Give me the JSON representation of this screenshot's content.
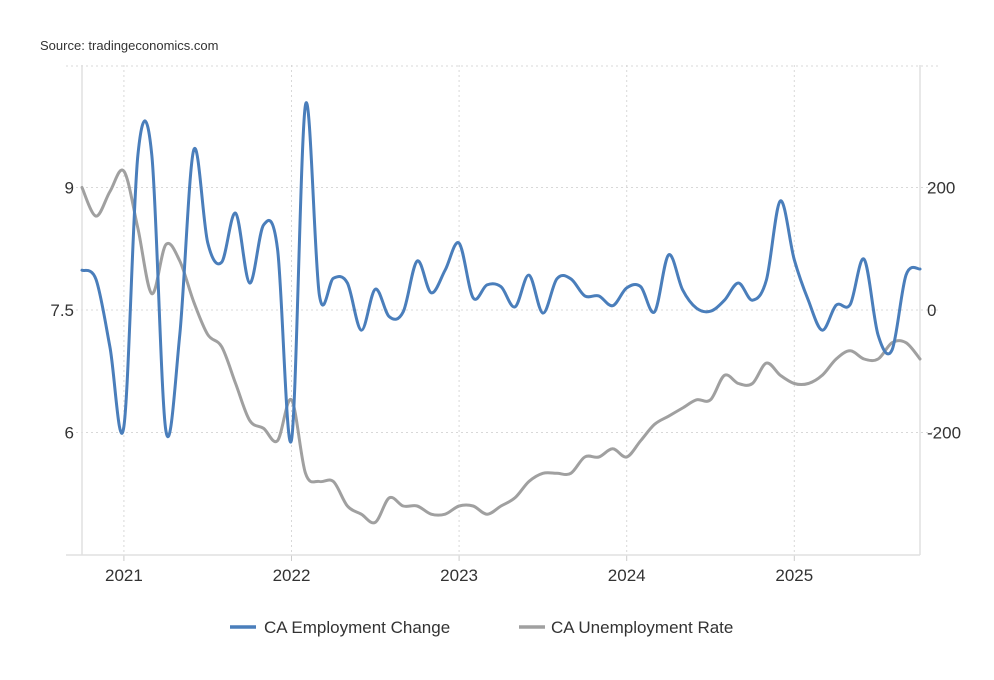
{
  "source": "Source: tradingeconomics.com",
  "chart_data": {
    "type": "line",
    "title": "",
    "x_start": "2020-10",
    "x_end": "2025-10",
    "x_frequency": "monthly",
    "x_ticks": [
      "2021",
      "2022",
      "2023",
      "2024",
      "2025"
    ],
    "left_axis": {
      "label": "",
      "ylim": [
        4.5,
        10.5
      ],
      "ticks": [
        6,
        7.5,
        9
      ],
      "tick_labels": [
        "6",
        "7.5",
        "9"
      ]
    },
    "right_axis": {
      "label": "",
      "ylim": [
        -400,
        400
      ],
      "ticks": [
        -200,
        0,
        200
      ],
      "tick_labels": [
        "-200",
        "0",
        "200"
      ]
    },
    "grid": true,
    "legend_position": "bottom",
    "series": [
      {
        "name": "CA Employment Change",
        "axis": "right",
        "color": "#4a7ebb",
        "values": [
          65,
          50,
          -60,
          -190,
          253,
          253,
          -196,
          -40,
          261,
          110,
          78,
          158,
          44,
          139,
          100,
          -212,
          335,
          24,
          52,
          44,
          -33,
          34,
          -11,
          -3,
          80,
          28,
          65,
          109,
          20,
          41,
          38,
          5,
          57,
          -5,
          51,
          51,
          23,
          23,
          7,
          36,
          38,
          -3,
          90,
          33,
          3,
          -2,
          16,
          44,
          16,
          49,
          178,
          82,
          16,
          -33,
          8,
          9,
          83,
          -41,
          -65,
          57,
          67
        ]
      },
      {
        "name": "CA Unemployment Rate",
        "axis": "left",
        "color": "#a0a0a0",
        "values": [
          9.0,
          8.65,
          8.95,
          9.2,
          8.5,
          7.7,
          8.3,
          8.1,
          7.6,
          7.2,
          7.05,
          6.6,
          6.15,
          6.05,
          5.9,
          6.4,
          5.5,
          5.4,
          5.4,
          5.1,
          5.0,
          4.9,
          5.2,
          5.1,
          5.1,
          5.0,
          5.0,
          5.1,
          5.1,
          5.0,
          5.1,
          5.2,
          5.4,
          5.5,
          5.5,
          5.5,
          5.7,
          5.7,
          5.8,
          5.7,
          5.9,
          6.1,
          6.2,
          6.3,
          6.4,
          6.4,
          6.7,
          6.6,
          6.6,
          6.85,
          6.7,
          6.6,
          6.6,
          6.7,
          6.9,
          7.0,
          6.9,
          6.9,
          7.1,
          7.1,
          6.9
        ]
      }
    ]
  }
}
